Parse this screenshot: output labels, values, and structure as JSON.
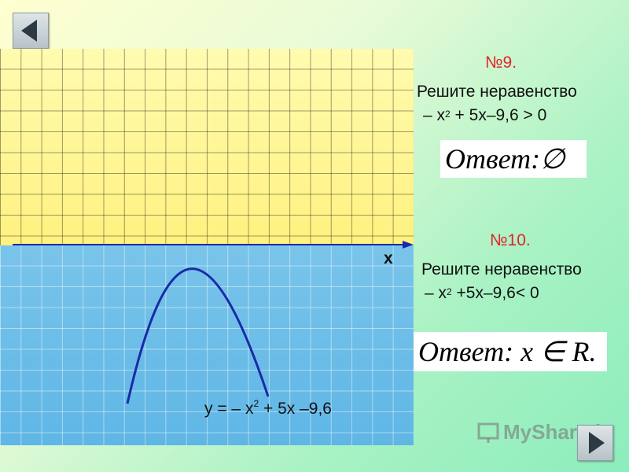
{
  "nav": {
    "back_icon": "triangle-left-icon",
    "forward_icon": "triangle-right-icon"
  },
  "graph": {
    "axis_label": "x",
    "function_label": {
      "main": "y = – x",
      "exp": "2",
      "rest": " + 5x –9,6"
    }
  },
  "task9": {
    "number": "№9.",
    "instruction": "Решите неравенство",
    "expr_main": "– x",
    "expr_exp": "2",
    "expr_rest": " + 5x–9,6 > 0",
    "answer_word": "Ответ",
    "answer_value": " :∅"
  },
  "task10": {
    "number": "№10.",
    "instruction": "Решите неравенство",
    "expr_main": "– x",
    "expr_exp": "2",
    "expr_rest": " +5x–9,6< 0",
    "answer_word": "Ответ",
    "answer_value": "  : x ∈ R."
  },
  "watermark": {
    "text": "MyShared"
  },
  "colors": {
    "accent": "#e2232a",
    "curve": "#1a2aa8",
    "yellow": "#fff07a",
    "blue": "#62b7e6"
  }
}
